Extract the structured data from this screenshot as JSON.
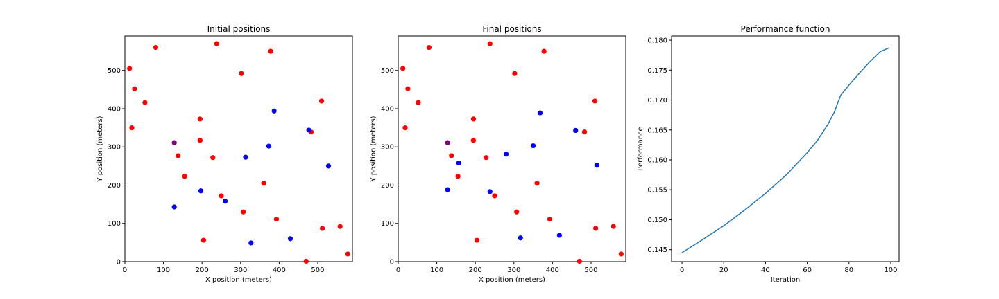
{
  "chart_data": [
    {
      "type": "scatter",
      "title": "Initial positions",
      "xlabel": "X position (meters)",
      "ylabel": "Y position (meters)",
      "xlim": [
        0,
        590
      ],
      "ylim": [
        0,
        590
      ],
      "xticks": [
        0,
        100,
        200,
        300,
        400,
        500
      ],
      "yticks": [
        0,
        100,
        200,
        300,
        400,
        500
      ],
      "grid": false,
      "colors": {
        "red": "#ff0000",
        "blue": "#0000ff",
        "purple": "#800080"
      },
      "points": [
        {
          "x": 12,
          "y": 505,
          "c": "red"
        },
        {
          "x": 80,
          "y": 560,
          "c": "red"
        },
        {
          "x": 238,
          "y": 570,
          "c": "red"
        },
        {
          "x": 378,
          "y": 550,
          "c": "red"
        },
        {
          "x": 302,
          "y": 492,
          "c": "red"
        },
        {
          "x": 25,
          "y": 452,
          "c": "red"
        },
        {
          "x": 52,
          "y": 416,
          "c": "red"
        },
        {
          "x": 510,
          "y": 420,
          "c": "red"
        },
        {
          "x": 195,
          "y": 373,
          "c": "red"
        },
        {
          "x": 18,
          "y": 350,
          "c": "red"
        },
        {
          "x": 483,
          "y": 339,
          "c": "red"
        },
        {
          "x": 195,
          "y": 317,
          "c": "red"
        },
        {
          "x": 138,
          "y": 277,
          "c": "red"
        },
        {
          "x": 228,
          "y": 272,
          "c": "red"
        },
        {
          "x": 155,
          "y": 223,
          "c": "red"
        },
        {
          "x": 360,
          "y": 205,
          "c": "red"
        },
        {
          "x": 250,
          "y": 172,
          "c": "red"
        },
        {
          "x": 307,
          "y": 130,
          "c": "red"
        },
        {
          "x": 393,
          "y": 111,
          "c": "red"
        },
        {
          "x": 512,
          "y": 87,
          "c": "red"
        },
        {
          "x": 558,
          "y": 92,
          "c": "red"
        },
        {
          "x": 204,
          "y": 56,
          "c": "red"
        },
        {
          "x": 470,
          "y": 1,
          "c": "red"
        },
        {
          "x": 578,
          "y": 20,
          "c": "red"
        },
        {
          "x": 128,
          "y": 311,
          "c": "purple"
        },
        {
          "x": 387,
          "y": 394,
          "c": "blue"
        },
        {
          "x": 477,
          "y": 344,
          "c": "blue"
        },
        {
          "x": 373,
          "y": 302,
          "c": "blue"
        },
        {
          "x": 313,
          "y": 273,
          "c": "blue"
        },
        {
          "x": 528,
          "y": 250,
          "c": "blue"
        },
        {
          "x": 197,
          "y": 185,
          "c": "blue"
        },
        {
          "x": 260,
          "y": 158,
          "c": "blue"
        },
        {
          "x": 128,
          "y": 143,
          "c": "blue"
        },
        {
          "x": 429,
          "y": 60,
          "c": "blue"
        },
        {
          "x": 327,
          "y": 49,
          "c": "blue"
        }
      ]
    },
    {
      "type": "scatter",
      "title": "Final positions",
      "xlabel": "X position (meters)",
      "ylabel": "Y position (meters)",
      "xlim": [
        0,
        590
      ],
      "ylim": [
        0,
        590
      ],
      "xticks": [
        0,
        100,
        200,
        300,
        400,
        500
      ],
      "yticks": [
        0,
        100,
        200,
        300,
        400,
        500
      ],
      "grid": false,
      "colors": {
        "red": "#ff0000",
        "blue": "#0000ff",
        "purple": "#800080"
      },
      "points": [
        {
          "x": 12,
          "y": 505,
          "c": "red"
        },
        {
          "x": 80,
          "y": 560,
          "c": "red"
        },
        {
          "x": 238,
          "y": 570,
          "c": "red"
        },
        {
          "x": 378,
          "y": 550,
          "c": "red"
        },
        {
          "x": 302,
          "y": 492,
          "c": "red"
        },
        {
          "x": 25,
          "y": 452,
          "c": "red"
        },
        {
          "x": 52,
          "y": 416,
          "c": "red"
        },
        {
          "x": 510,
          "y": 420,
          "c": "red"
        },
        {
          "x": 195,
          "y": 373,
          "c": "red"
        },
        {
          "x": 18,
          "y": 350,
          "c": "red"
        },
        {
          "x": 483,
          "y": 339,
          "c": "red"
        },
        {
          "x": 195,
          "y": 317,
          "c": "red"
        },
        {
          "x": 138,
          "y": 277,
          "c": "red"
        },
        {
          "x": 228,
          "y": 272,
          "c": "red"
        },
        {
          "x": 155,
          "y": 223,
          "c": "red"
        },
        {
          "x": 360,
          "y": 205,
          "c": "red"
        },
        {
          "x": 250,
          "y": 172,
          "c": "red"
        },
        {
          "x": 307,
          "y": 130,
          "c": "red"
        },
        {
          "x": 393,
          "y": 111,
          "c": "red"
        },
        {
          "x": 512,
          "y": 87,
          "c": "red"
        },
        {
          "x": 558,
          "y": 92,
          "c": "red"
        },
        {
          "x": 204,
          "y": 56,
          "c": "red"
        },
        {
          "x": 470,
          "y": 1,
          "c": "red"
        },
        {
          "x": 578,
          "y": 20,
          "c": "red"
        },
        {
          "x": 128,
          "y": 311,
          "c": "purple"
        },
        {
          "x": 368,
          "y": 389,
          "c": "blue"
        },
        {
          "x": 460,
          "y": 343,
          "c": "blue"
        },
        {
          "x": 350,
          "y": 303,
          "c": "blue"
        },
        {
          "x": 280,
          "y": 281,
          "c": "blue"
        },
        {
          "x": 515,
          "y": 252,
          "c": "blue"
        },
        {
          "x": 157,
          "y": 258,
          "c": "blue"
        },
        {
          "x": 128,
          "y": 188,
          "c": "blue"
        },
        {
          "x": 238,
          "y": 183,
          "c": "blue"
        },
        {
          "x": 418,
          "y": 69,
          "c": "blue"
        },
        {
          "x": 317,
          "y": 62,
          "c": "blue"
        }
      ]
    },
    {
      "type": "line",
      "title": "Performance function",
      "xlabel": "Iteration",
      "ylabel": "Performance",
      "xlim": [
        -5,
        104
      ],
      "ylim": [
        0.143,
        0.1807
      ],
      "xticks": [
        0,
        20,
        40,
        60,
        80,
        100
      ],
      "yticks": [
        0.145,
        0.15,
        0.155,
        0.16,
        0.165,
        0.17,
        0.175,
        0.18
      ],
      "ytick_labels": [
        "0.145",
        "0.150",
        "0.155",
        "0.160",
        "0.165",
        "0.170",
        "0.175",
        "0.180"
      ],
      "grid": false,
      "line_color": "#1f77b4",
      "series": [
        {
          "x": [
            0,
            10,
            20,
            30,
            40,
            50,
            60,
            65,
            70,
            73,
            76,
            77,
            80,
            85,
            90,
            95,
            99
          ],
          "y": [
            0.1445,
            0.1467,
            0.149,
            0.1516,
            0.1544,
            0.1575,
            0.1612,
            0.1633,
            0.166,
            0.168,
            0.1708,
            0.1712,
            0.1725,
            0.1745,
            0.1764,
            0.1781,
            0.1787
          ]
        }
      ]
    }
  ]
}
